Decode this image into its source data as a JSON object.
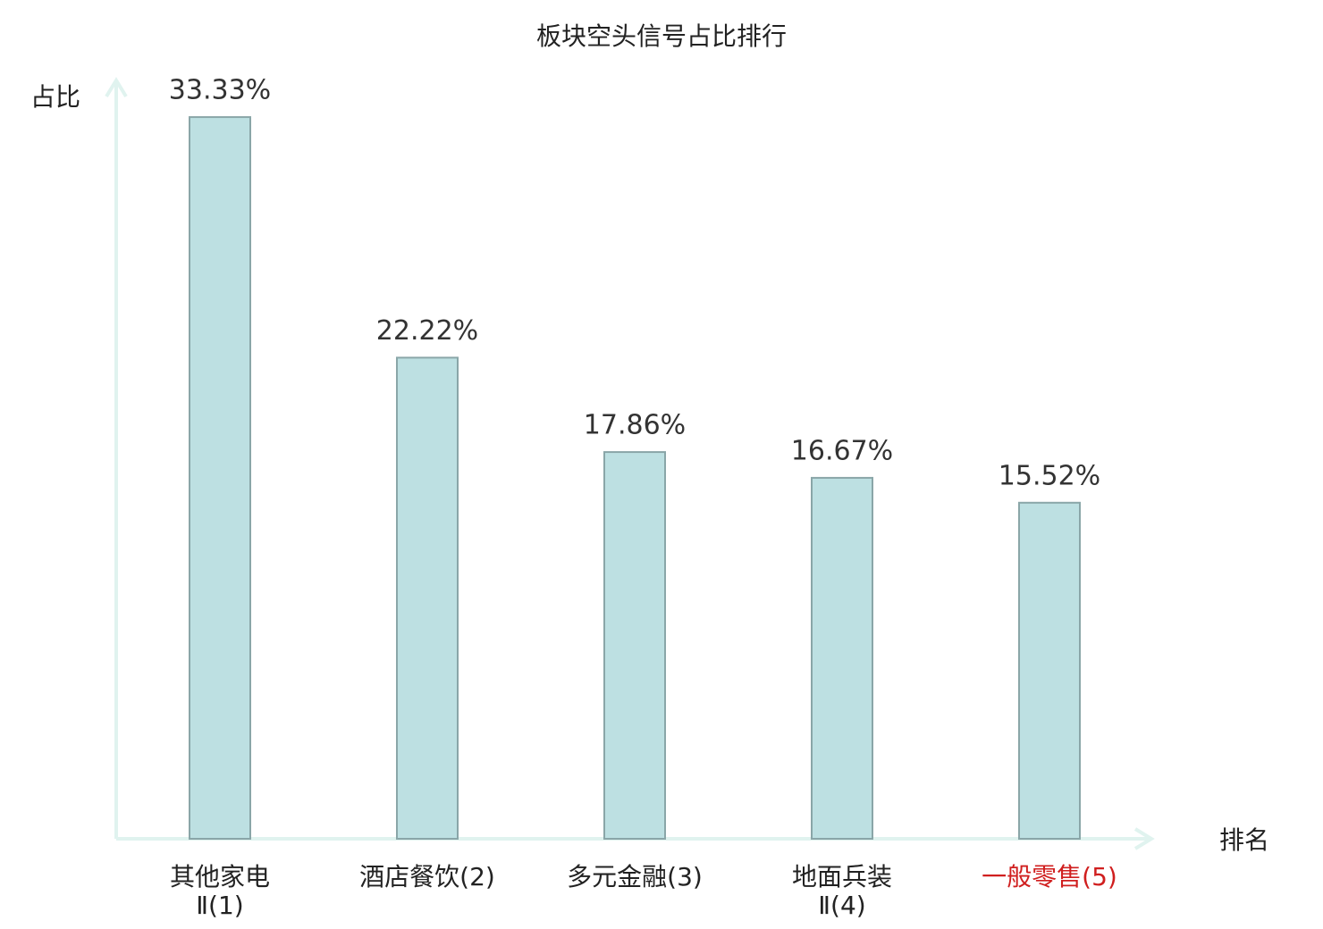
{
  "chart_data": {
    "type": "bar",
    "title": "板块空头信号占比排行",
    "y_label": "占比",
    "x_label": "排名",
    "categories": [
      "其他家电Ⅱ(1)",
      "酒店餐饮(2)",
      "多元金融(3)",
      "地面兵装Ⅱ(4)",
      "一般零售(5)"
    ],
    "category_label_colors": [
      "#222222",
      "#222222",
      "#222222",
      "#222222",
      "#d01f1f"
    ],
    "values": [
      33.33,
      22.22,
      17.86,
      16.67,
      15.52
    ],
    "value_labels": [
      "33.33%",
      "22.22%",
      "17.86%",
      "16.67%",
      "15.52%"
    ],
    "color": "#bde0e2",
    "edge_color": "#8aa6a8",
    "ylim": [
      0,
      35
    ]
  }
}
